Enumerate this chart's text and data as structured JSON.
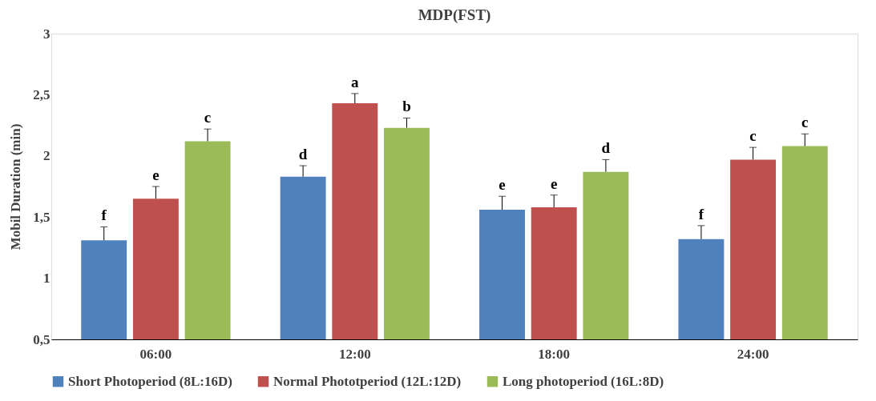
{
  "chart_data": {
    "type": "bar",
    "title": "MDP(FST)",
    "ylabel": "Mobil Duration (min)",
    "categories": [
      "06:00",
      "12:00",
      "18:00",
      "24:00"
    ],
    "series": [
      {
        "name": "Short Photoperiod (8L:16D)",
        "color": "#4f81bd",
        "values": [
          1.31,
          1.83,
          1.56,
          1.32
        ],
        "errors": [
          0.11,
          0.09,
          0.11,
          0.11
        ],
        "value_labels": [
          "f",
          "d",
          "e",
          "f"
        ]
      },
      {
        "name": "Normal Phototperiod (12L:12D)",
        "color": "#c0504d",
        "values": [
          1.65,
          2.43,
          1.58,
          1.97
        ],
        "errors": [
          0.1,
          0.08,
          0.1,
          0.1
        ],
        "value_labels": [
          "e",
          "a",
          "e",
          "c"
        ]
      },
      {
        "name": "Long photoperiod (16L:8D)",
        "color": "#9bbb59",
        "values": [
          2.12,
          2.23,
          1.87,
          2.08
        ],
        "errors": [
          0.1,
          0.08,
          0.1,
          0.1
        ],
        "value_labels": [
          "c",
          "b",
          "d",
          "c"
        ]
      }
    ],
    "ylim": [
      0.5,
      3
    ],
    "yticks": [
      {
        "value": 0.5,
        "label": "0,5"
      },
      1,
      {
        "value": 1.5,
        "label": "1,5"
      },
      2,
      {
        "value": 2.5,
        "label": "2,5"
      },
      3
    ],
    "grid": false,
    "legend": "bottom"
  }
}
